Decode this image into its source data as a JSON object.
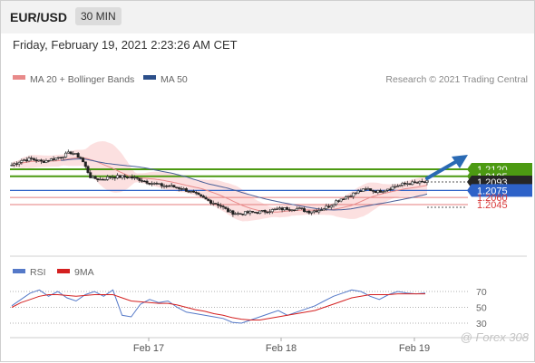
{
  "header": {
    "pair": "EUR/USD",
    "interval": "30 MIN"
  },
  "datetime": "Friday, February 19, 2021 2:23:26 AM CET",
  "legend": {
    "ma20_label": "MA 20 + Bollinger Bands",
    "ma50_label": "MA 50",
    "copyright": "Research © 2021 Trading Central",
    "rsi_label": "RSI",
    "ma9_label": "9MA"
  },
  "watermark": "@ Forex 308",
  "colors": {
    "ma20": "#e88a8a",
    "ma50": "#2c4f8a",
    "band_fill": "#fbdada",
    "resistance": "#4c9a12",
    "support_blue": "#2e62c8",
    "support_red": "#e47e7e",
    "rsi": "#5579c8",
    "ma9": "#d42020",
    "last": "#262626",
    "arrow": "#2a6ab4"
  },
  "chart_data": [
    {
      "type": "candlestick",
      "title": "EUR/USD",
      "x_tick_labels": [
        "Feb 17",
        "Feb 18",
        "Feb 19"
      ],
      "ylim": [
        1.2025,
        1.2135
      ],
      "key_levels": [
        {
          "value": 1.212,
          "label": "1.2120",
          "kind": "resistance"
        },
        {
          "value": 1.2105,
          "label": "1.2105",
          "kind": "resistance"
        },
        {
          "value": 1.2093,
          "label": "1.2093",
          "kind": "last"
        },
        {
          "value": 1.2075,
          "label": "1.2075",
          "kind": "pivot"
        },
        {
          "value": 1.206,
          "label": "1.2060",
          "kind": "support"
        },
        {
          "value": 1.2045,
          "label": "1.2045",
          "kind": "support"
        }
      ],
      "price_path": [
        1.2129,
        1.2139,
        1.2142,
        1.2136,
        1.2141,
        1.2147,
        1.2156,
        1.2144,
        1.2102,
        1.2098,
        1.2104,
        1.2104,
        1.2103,
        1.2098,
        1.2091,
        1.2086,
        1.2084,
        1.208,
        1.2073,
        1.2062,
        1.2052,
        1.2044,
        1.2029,
        1.2025,
        1.2028,
        1.2029,
        1.2032,
        1.2035,
        1.2037,
        1.2036,
        1.203,
        1.2033,
        1.2041,
        1.2055,
        1.2063,
        1.2072,
        1.2078,
        1.2072,
        1.2079,
        1.2085,
        1.209,
        1.2091,
        1.2093
      ]
    },
    {
      "type": "line",
      "title": "RSI",
      "x_tick_labels": [
        "Feb 17",
        "Feb 18",
        "Feb 19"
      ],
      "y_ticks": [
        70,
        50,
        30
      ],
      "ylim": [
        20,
        80
      ],
      "series": [
        {
          "name": "RSI",
          "values": [
            52,
            60,
            68,
            72,
            64,
            70,
            62,
            58,
            66,
            70,
            64,
            72,
            40,
            38,
            54,
            60,
            56,
            58,
            50,
            44,
            42,
            40,
            38,
            36,
            31,
            30,
            34,
            38,
            42,
            46,
            40,
            44,
            48,
            52,
            58,
            64,
            68,
            72,
            70,
            64,
            60,
            66,
            70,
            68,
            67,
            68
          ]
        },
        {
          "name": "9MA",
          "values": [
            50,
            56,
            60,
            64,
            66,
            66,
            65,
            64,
            65,
            66,
            66,
            66,
            62,
            58,
            57,
            56,
            55,
            55,
            53,
            50,
            47,
            45,
            42,
            40,
            37,
            35,
            34,
            34,
            36,
            38,
            40,
            42,
            44,
            46,
            50,
            54,
            58,
            62,
            64,
            66,
            66,
            66,
            67,
            67,
            67,
            67
          ]
        }
      ]
    }
  ]
}
